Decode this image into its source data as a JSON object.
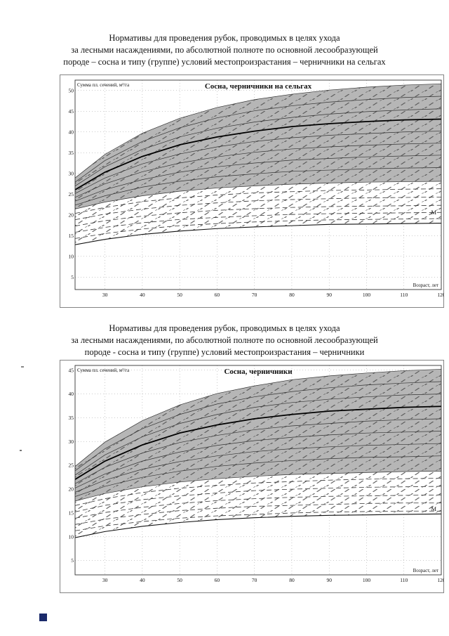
{
  "page": {
    "headings": [
      {
        "lines": [
          "Нормативы для проведения рубок, проводимых в целях ухода",
          "за лесными насаждениями, по абсолютной полноте по основной лесообразующей",
          "породе – сосна и типу (группе) условий местопроизрастания – черничники на сельгах"
        ]
      },
      {
        "lines": [
          "Нормативы для проведения рубок, проводимых в целях ухода",
          "за лесными насаждениями, по абсолютной полноте по основной лесообразующей",
          "породе - сосна и типу (группе) условий местопроизрастания – черничники"
        ]
      }
    ]
  },
  "chart_data": [
    {
      "type": "line",
      "title": "Сосна, черничники на сельгах",
      "ylabel": "Сумма пл. сечений, м²/га",
      "xlabel": "Возраст, лет",
      "xlim": [
        22,
        120
      ],
      "ylim": [
        2,
        52.5
      ],
      "xticks": [
        30,
        40,
        50,
        60,
        70,
        80,
        90,
        100,
        110,
        120
      ],
      "yticks": [
        5,
        10,
        15,
        20,
        25,
        30,
        35,
        40,
        45,
        50
      ],
      "grid": true,
      "legend": "none",
      "band_fill": "#b6b6b6",
      "marker": {
        "label": "М",
        "y": 20.5
      },
      "x": [
        20,
        30,
        40,
        50,
        60,
        70,
        80,
        90,
        100,
        110,
        120
      ],
      "regions": {
        "gray": [
          0,
          8
        ],
        "hatch": [
          0,
          14
        ]
      },
      "series": [
        {
          "name": "upper-1",
          "style": "solid",
          "values": [
            27.5,
            34.6,
            39.7,
            43.3,
            45.9,
            47.8,
            49.1,
            50.1,
            50.8,
            51.3,
            51.6
          ]
        },
        {
          "name": "upper-2",
          "style": "solid",
          "values": [
            26.6,
            33.1,
            37.7,
            41.0,
            43.4,
            45.1,
            46.3,
            47.2,
            47.8,
            48.3,
            48.6
          ]
        },
        {
          "name": "upper-3",
          "style": "solid",
          "values": [
            25.8,
            31.6,
            35.8,
            38.8,
            40.9,
            42.4,
            43.5,
            44.3,
            44.9,
            45.3,
            45.6
          ]
        },
        {
          "name": "main-curve",
          "style": "thick",
          "values": [
            25.0,
            30.3,
            34.1,
            36.9,
            38.8,
            40.2,
            41.3,
            42.0,
            42.5,
            42.9,
            43.1
          ]
        },
        {
          "name": "upper-5",
          "style": "solid",
          "values": [
            24.2,
            28.9,
            32.3,
            34.7,
            36.4,
            37.7,
            38.6,
            39.2,
            39.6,
            40.0,
            40.2
          ]
        },
        {
          "name": "upper-6",
          "style": "solid",
          "values": [
            23.4,
            27.5,
            30.4,
            32.5,
            34.0,
            35.1,
            35.9,
            36.4,
            36.8,
            37.1,
            37.3
          ]
        },
        {
          "name": "upper-7",
          "style": "solid",
          "values": [
            22.6,
            26.1,
            28.5,
            30.3,
            31.6,
            32.5,
            33.2,
            33.6,
            34.0,
            34.2,
            34.4
          ]
        },
        {
          "name": "upper-8",
          "style": "solid",
          "values": [
            21.8,
            24.6,
            26.7,
            28.1,
            29.2,
            29.9,
            30.5,
            30.8,
            31.1,
            31.3,
            31.4
          ]
        },
        {
          "name": "band-bottom",
          "style": "solid",
          "values": [
            21.0,
            23.1,
            24.6,
            25.7,
            26.5,
            27.0,
            27.4,
            27.7,
            27.9,
            28.0,
            28.1
          ]
        },
        {
          "name": "dashed-1",
          "style": "dashed",
          "values": [
            20.0,
            21.8,
            23.2,
            24.1,
            24.8,
            25.3,
            25.6,
            25.9,
            26.0,
            26.2,
            26.3
          ]
        },
        {
          "name": "dashed-2",
          "style": "dashed",
          "values": [
            18.5,
            20.2,
            21.4,
            22.3,
            22.9,
            23.4,
            23.7,
            23.9,
            24.1,
            24.2,
            24.3
          ]
        },
        {
          "name": "dashed-3",
          "style": "dashed",
          "values": [
            17.0,
            18.6,
            19.7,
            20.5,
            21.1,
            21.5,
            21.8,
            22.0,
            22.1,
            22.2,
            22.3
          ]
        },
        {
          "name": "dashed-4",
          "style": "dashed",
          "values": [
            15.5,
            17.0,
            18.1,
            18.9,
            19.4,
            19.8,
            20.1,
            20.3,
            20.4,
            20.5,
            20.6
          ]
        },
        {
          "name": "dashed-5",
          "style": "dashed",
          "values": [
            14.0,
            15.5,
            16.6,
            17.4,
            17.9,
            18.3,
            18.6,
            18.8,
            18.9,
            19.0,
            19.1
          ]
        },
        {
          "name": "min-limit",
          "style": "limit",
          "values": [
            12.5,
            14.1,
            15.3,
            16.1,
            16.7,
            17.1,
            17.4,
            17.7,
            17.8,
            17.9,
            18.0
          ]
        }
      ]
    },
    {
      "type": "line",
      "title": "Сосна, черничники",
      "ylabel": "Сумма пл. сечений, м²/га",
      "xlabel": "Возраст, лет",
      "xlim": [
        22,
        120
      ],
      "ylim": [
        2,
        46
      ],
      "xticks": [
        30,
        40,
        50,
        60,
        70,
        80,
        90,
        100,
        110,
        120
      ],
      "yticks": [
        5,
        10,
        15,
        20,
        25,
        30,
        35,
        40,
        45
      ],
      "grid": true,
      "legend": "none",
      "band_fill": "#b6b6b6",
      "marker": {
        "label": "М",
        "y": 15.7
      },
      "x": [
        20,
        30,
        40,
        50,
        60,
        70,
        80,
        90,
        100,
        110,
        120
      ],
      "regions": {
        "gray": [
          0,
          8
        ],
        "hatch": [
          0,
          14
        ]
      },
      "series": [
        {
          "name": "upper-1",
          "style": "solid",
          "values": [
            23.5,
            29.9,
            34.4,
            37.7,
            40.1,
            41.7,
            43.0,
            43.8,
            44.4,
            44.9,
            45.2
          ]
        },
        {
          "name": "upper-2",
          "style": "solid",
          "values": [
            22.7,
            28.5,
            32.7,
            35.7,
            37.9,
            39.4,
            40.5,
            41.3,
            41.9,
            42.3,
            42.6
          ]
        },
        {
          "name": "upper-3",
          "style": "solid",
          "values": [
            21.9,
            27.2,
            31.0,
            33.8,
            35.7,
            37.2,
            38.2,
            38.9,
            39.4,
            39.8,
            40.0
          ]
        },
        {
          "name": "main-curve",
          "style": "thick",
          "values": [
            21.1,
            25.9,
            29.3,
            31.8,
            33.5,
            34.8,
            35.7,
            36.4,
            36.8,
            37.2,
            37.4
          ]
        },
        {
          "name": "upper-5",
          "style": "solid",
          "values": [
            20.3,
            24.6,
            27.6,
            29.8,
            31.3,
            32.5,
            33.3,
            33.8,
            34.3,
            34.6,
            34.8
          ]
        },
        {
          "name": "upper-6",
          "style": "solid",
          "values": [
            19.5,
            23.2,
            25.9,
            27.8,
            29.2,
            30.2,
            30.9,
            31.4,
            31.8,
            32.0,
            32.2
          ]
        },
        {
          "name": "upper-7",
          "style": "solid",
          "values": [
            18.7,
            21.9,
            24.2,
            25.8,
            27.0,
            27.9,
            28.5,
            28.9,
            29.2,
            29.4,
            29.6
          ]
        },
        {
          "name": "upper-8",
          "style": "solid",
          "values": [
            17.9,
            20.6,
            22.5,
            23.8,
            24.8,
            25.5,
            26.0,
            26.4,
            26.7,
            26.8,
            27.0
          ]
        },
        {
          "name": "band-bottom",
          "style": "solid",
          "values": [
            17.1,
            19.1,
            20.5,
            21.5,
            22.2,
            22.7,
            23.1,
            23.3,
            23.5,
            23.7,
            23.8
          ]
        },
        {
          "name": "dashed-1",
          "style": "dashed",
          "values": [
            16.2,
            18.0,
            19.3,
            20.2,
            20.8,
            21.3,
            21.6,
            21.9,
            22.1,
            22.2,
            22.3
          ]
        },
        {
          "name": "dashed-2",
          "style": "dashed",
          "values": [
            14.9,
            16.6,
            17.8,
            18.6,
            19.2,
            19.7,
            20.0,
            20.2,
            20.4,
            20.5,
            20.6
          ]
        },
        {
          "name": "dashed-3",
          "style": "dashed",
          "values": [
            13.6,
            15.1,
            16.2,
            17.0,
            17.6,
            18.0,
            18.3,
            18.5,
            18.6,
            18.7,
            18.8
          ]
        },
        {
          "name": "dashed-4",
          "style": "dashed",
          "values": [
            12.3,
            13.7,
            14.7,
            15.5,
            16.0,
            16.4,
            16.6,
            16.8,
            17.0,
            17.1,
            17.1
          ]
        },
        {
          "name": "dashed-5",
          "style": "dashed",
          "values": [
            11.0,
            12.3,
            13.2,
            13.9,
            14.4,
            14.7,
            15.0,
            15.2,
            15.3,
            15.4,
            15.4
          ]
        },
        {
          "name": "min-limit",
          "style": "limit",
          "values": [
            9.5,
            11.1,
            12.2,
            13.0,
            13.6,
            14.0,
            14.3,
            14.5,
            14.6,
            14.7,
            14.8
          ]
        }
      ]
    }
  ]
}
